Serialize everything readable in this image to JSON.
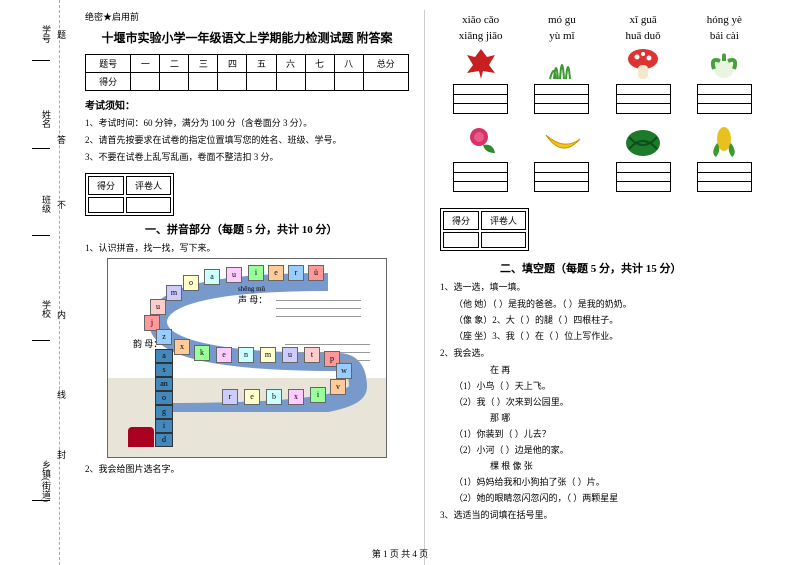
{
  "side": {
    "outer": [
      "学号",
      "姓名",
      "班级",
      "学校",
      "乡镇(街道)"
    ],
    "inner": [
      "题",
      "答",
      "不",
      "内",
      "线",
      "封"
    ]
  },
  "secret": "绝密★启用前",
  "title": "十堰市实验小学一年级语文上学期能力检测试题 附答案",
  "score_table": {
    "headers": [
      "题号",
      "一",
      "二",
      "三",
      "四",
      "五",
      "六",
      "七",
      "八",
      "总分"
    ],
    "row2_label": "得分"
  },
  "notice": {
    "title": "考试须知：",
    "items": [
      "1、考试时间：60 分钟，满分为 100 分（含卷面分 3 分）。",
      "2、请首先按要求在试卷的指定位置填写您的姓名、班级、学号。",
      "3、不要在试卷上乱写乱画，卷面不整洁扣 3 分。"
    ]
  },
  "score_box": {
    "c1": "得分",
    "c2": "评卷人"
  },
  "section1": {
    "title": "一、拼音部分（每题 5 分，共计 10 分）",
    "q1": "1、认识拼音，找一找，写下来。",
    "q2": "2、我会给图片选名字。",
    "labels": {
      "sheng": "声 母：",
      "sheng_py": "shēng mǔ",
      "yun": "韵 母：",
      "yun_py": "yùn mǔ"
    },
    "top_letters": [
      "ü",
      "r",
      "e",
      "i",
      "u",
      "a",
      "o",
      "m",
      "u"
    ],
    "mid_letters": [
      "j",
      "z",
      "x",
      "k",
      "e",
      "n",
      "m",
      "u",
      "t"
    ],
    "bot_letters": [
      "p",
      "w",
      "v",
      "i",
      "x",
      "b",
      "e",
      "r"
    ],
    "cars": [
      "a",
      "s",
      "an",
      "o",
      "g",
      "i",
      "d"
    ]
  },
  "pinyin": {
    "row1": [
      "xiǎo cǎo",
      "mó gu",
      "xī guā",
      "hóng yè"
    ],
    "row2": [
      "xiāng jiāo",
      "yù mǐ",
      "huā duǒ",
      "bái cài"
    ]
  },
  "icons": {
    "set1": [
      "leaf-red",
      "grass",
      "mushroom",
      "cabbage"
    ],
    "set2": [
      "rose",
      "banana",
      "watermelon",
      "corn"
    ]
  },
  "section2": {
    "title": "二、填空题（每题 5 分，共计 15 分）",
    "q1": "1、选一选，填一填。",
    "q1_lines": [
      "（他  她）（     ）是我的爸爸。（     ）是我的奶奶。",
      "（像  象）2、大（     ）的腿（     ）四根柱子。",
      "（座  坐）3、我（     ）在（     ）位上写作业。"
    ],
    "q2": "2、我会选。",
    "q2_lines": [
      "在          再",
      "（1）小鸟（          ）天上飞。",
      "（2）我（          ）次来到公园里。",
      "那    哪",
      "（1）你装到（          ）儿去？",
      "（2）小河（          ）边是他的家。",
      "棵    根    像    张",
      "（1）妈妈给我和小狗拍了张（       ）片。",
      "（2）她的眼睛忽闪忽闪的，（          ）两颗星星"
    ],
    "q3": "3、选适当的词填在括号里。"
  },
  "footer": "第 1 页 共 4 页",
  "colors": {
    "leaf": "#c62020",
    "grass": "#3a9a2e",
    "mushroom_cap": "#d33",
    "mushroom_stem": "#f5e8c8",
    "cabbage": "#4aa038",
    "rose": "#d6336c",
    "rose_leaf": "#2e8b2e",
    "banana": "#f5c518",
    "watermelon": "#1d7a2b",
    "watermelon_stripe": "#0d4d18",
    "corn": "#e8c020",
    "corn_leaf": "#3a9a2e"
  }
}
